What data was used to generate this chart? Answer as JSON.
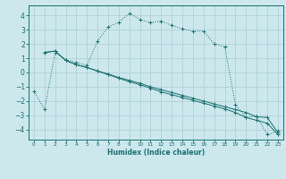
{
  "xlabel": "Humidex (Indice chaleur)",
  "bg_color": "#cce8ec",
  "grid_color": "#aacdd4",
  "line_color": "#1a7070",
  "xlim": [
    -0.5,
    23.5
  ],
  "ylim": [
    -4.7,
    4.7
  ],
  "yticks": [
    -4,
    -3,
    -2,
    -1,
    0,
    1,
    2,
    3,
    4
  ],
  "xticks": [
    0,
    1,
    2,
    3,
    4,
    5,
    6,
    7,
    8,
    9,
    10,
    11,
    12,
    13,
    14,
    15,
    16,
    17,
    18,
    19,
    20,
    21,
    22,
    23
  ],
  "line1_x": [
    0,
    1,
    2,
    3,
    4,
    5,
    6,
    7,
    8,
    9,
    10,
    11,
    12,
    13,
    14,
    15,
    16,
    17,
    18,
    19,
    20,
    21,
    22,
    23
  ],
  "line1_y": [
    -1.3,
    -2.6,
    1.4,
    0.9,
    0.7,
    0.5,
    2.2,
    3.2,
    3.5,
    4.15,
    3.7,
    3.5,
    3.6,
    3.3,
    3.05,
    2.9,
    2.9,
    2.0,
    1.8,
    -2.25,
    -3.15,
    -3.05,
    -4.35,
    -4.1
  ],
  "line2_x": [
    1,
    2,
    3,
    4,
    5,
    6,
    7,
    8,
    9,
    10,
    11,
    12,
    13,
    14,
    15,
    16,
    17,
    18,
    19,
    20,
    21,
    22,
    23
  ],
  "line2_y": [
    1.4,
    1.5,
    0.85,
    0.55,
    0.35,
    0.1,
    -0.1,
    -0.35,
    -0.55,
    -0.75,
    -1.0,
    -1.2,
    -1.4,
    -1.6,
    -1.8,
    -2.0,
    -2.2,
    -2.4,
    -2.6,
    -2.8,
    -3.1,
    -3.15,
    -4.2
  ],
  "line3_x": [
    1,
    2,
    3,
    4,
    5,
    6,
    7,
    8,
    9,
    10,
    11,
    12,
    13,
    14,
    15,
    16,
    17,
    18,
    19,
    20,
    21,
    22,
    23
  ],
  "line3_y": [
    1.4,
    1.5,
    0.85,
    0.55,
    0.35,
    0.1,
    -0.15,
    -0.4,
    -0.65,
    -0.85,
    -1.1,
    -1.35,
    -1.55,
    -1.75,
    -1.95,
    -2.15,
    -2.35,
    -2.55,
    -2.8,
    -3.15,
    -3.35,
    -3.55,
    -4.35
  ]
}
